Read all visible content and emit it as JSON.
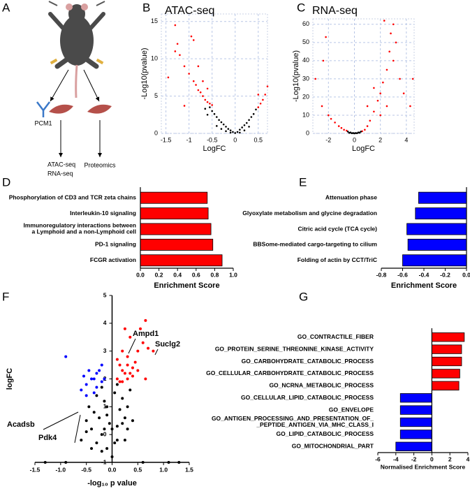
{
  "panel_labels": [
    "A",
    "B",
    "C",
    "D",
    "E",
    "F",
    "G"
  ],
  "diagram": {
    "antibody_label": "PCM1",
    "left_branch": [
      "ATAC-seq",
      "RNA-seq"
    ],
    "right_branch": "Proteomics"
  },
  "chart_data": [
    {
      "type": "scatter",
      "title": "ATAC-seq",
      "x_label": "LogFC",
      "y_label": "-Log10(pvalue)",
      "xlim": [
        -1.6,
        0.7
      ],
      "xticks": [
        -1.5,
        -1,
        -0.5,
        0,
        0.5
      ],
      "ylim": [
        0,
        16
      ],
      "yticks": [
        0,
        5,
        10,
        15
      ],
      "grid": true,
      "series": [
        {
          "color": "#000000",
          "x": [
            -0.65,
            -0.6,
            -0.55,
            -0.5,
            -0.45,
            -0.4,
            -0.35,
            -0.3,
            -0.25,
            -0.2,
            -0.15,
            -0.1,
            -0.05,
            0,
            0.05,
            0.1,
            0.15,
            0.2,
            0.25,
            0.3,
            0.35,
            0.4,
            0.45,
            -0.4,
            -0.3,
            -0.2,
            0.2,
            0.3,
            0.1,
            -0.1
          ],
          "y": [
            3.3,
            2.5,
            3.5,
            3.0,
            2.6,
            2.2,
            1.8,
            1.5,
            1.2,
            0.9,
            0.6,
            0.4,
            0.2,
            0.05,
            0.2,
            0.5,
            0.8,
            1.1,
            1.4,
            1.8,
            2.2,
            2.6,
            3.2,
            1.0,
            0.6,
            0.3,
            0.4,
            0.9,
            0.1,
            0.1
          ]
        },
        {
          "color": "#ff0000",
          "x": [
            -1.3,
            -1.25,
            -1.2,
            -1.1,
            -1.0,
            -0.9,
            -0.85,
            -0.8,
            -0.75,
            -0.7,
            -0.65,
            -0.6,
            -0.55,
            -1.45,
            -1.3,
            -0.95,
            -0.9,
            -0.8,
            -0.5,
            0.5,
            0.55,
            0.6,
            0.65,
            0.7,
            0.5,
            -1.1,
            -0.7,
            -0.6
          ],
          "y": [
            11,
            12,
            10.5,
            9,
            8,
            7,
            6.5,
            5.8,
            5.5,
            5,
            4.5,
            4.2,
            4,
            7.5,
            14.5,
            13,
            12.5,
            9,
            3.8,
            3.5,
            4,
            4.5,
            5.2,
            6.3,
            5.2,
            3.7,
            7,
            6
          ]
        }
      ]
    },
    {
      "type": "scatter",
      "title": "RNA-seq",
      "x_label": "LogFC",
      "y_label": "-Log10(pvalue)",
      "xlim": [
        -3.2,
        4.6
      ],
      "xticks": [
        -2,
        0,
        2,
        4
      ],
      "ylim": [
        0,
        63
      ],
      "yticks": [
        0,
        10,
        20,
        30,
        40,
        50,
        60
      ],
      "grid": true,
      "series": [
        {
          "color": "#ff0000",
          "x": [
            -3,
            -2.2,
            -2.4,
            -2,
            -1.8,
            -1.5,
            -1.2,
            -1,
            -0.8,
            0.8,
            1,
            1.2,
            1.5,
            1.8,
            2,
            2.2,
            2.5,
            2.7,
            2.8,
            3,
            3,
            3.2,
            3.5,
            2.5,
            2,
            1.5,
            3.8,
            4.3,
            4.5,
            -2.5,
            -0.6,
            0.6,
            2.3,
            1
          ],
          "y": [
            30,
            53,
            40,
            10,
            8,
            6,
            4,
            3,
            2,
            2,
            4,
            7,
            12,
            18,
            22,
            28,
            35,
            45,
            55,
            60,
            40,
            50,
            30,
            15,
            10,
            25,
            22,
            15,
            30,
            15,
            1.5,
            1.2,
            62,
            15
          ]
        },
        {
          "color": "#000000",
          "x": [
            -0.5,
            -0.3,
            -0.1,
            0,
            0.1,
            0.3,
            0.5,
            -0.4,
            0.4,
            0.2,
            -0.2
          ],
          "y": [
            1,
            0.5,
            0.2,
            0,
            0.2,
            0.5,
            1,
            0.3,
            0.4,
            0.1,
            0.1
          ]
        }
      ]
    },
    {
      "type": "hbar",
      "x_label": "Enrichment Score",
      "color": "#ff0000",
      "categories": [
        "Phosphorylation of CD3 and TCR zeta chains",
        "Interleukin-10 signaling",
        "Immunoregulatory interactions between\na Lymphoid and a non-Lymphoid cell",
        "PD-1 signaling",
        "FCGR activation"
      ],
      "values": [
        0.72,
        0.73,
        0.76,
        0.78,
        0.88
      ],
      "xlim": [
        0,
        1
      ],
      "xticks": [
        {
          "value": 0,
          "label": "0.0"
        },
        0.2,
        0.4,
        0.6,
        0.8,
        {
          "value": 1,
          "label": "1.0"
        }
      ]
    },
    {
      "type": "hbar",
      "x_label": "Enrichment Score",
      "color": "#0000ff",
      "categories": [
        "Attenuation phase",
        "Glyoxylate metabolism and glycine degradation",
        "Citric acid cycle (TCA cycle)",
        "BBSome-mediated cargo-targeting to cilium",
        "Folding of actin by CCT/TriC"
      ],
      "values": [
        -0.45,
        -0.48,
        -0.56,
        -0.55,
        -0.6
      ],
      "xlim": [
        -0.8,
        0
      ],
      "xticks": [
        -0.8,
        -0.6,
        -0.4,
        -0.2,
        {
          "value": 0,
          "label": "0.0"
        }
      ]
    },
    {
      "type": "scatter",
      "x_label": "-log₁₀ p value",
      "y_label": "logFC",
      "xlim": [
        -1.5,
        1.5
      ],
      "xticks": [
        -1.5,
        {
          "value": -1,
          "label": "-1.0"
        },
        -0.5,
        {
          "value": 0,
          "label": "0.0"
        },
        0.5,
        {
          "value": 1,
          "label": "1.0"
        },
        1.5
      ],
      "ylim": [
        -1,
        5
      ],
      "yticks": [
        -1,
        0,
        1,
        2,
        3,
        4,
        5
      ],
      "grid": false,
      "annotations": [
        "Ampd1",
        "Suclg2",
        "Acadsb",
        "Pdk4"
      ],
      "series": [
        {
          "color": "#000000",
          "x": [
            -0.5,
            -0.45,
            -0.4,
            -0.35,
            -0.3,
            -0.25,
            -0.2,
            -0.15,
            -0.1,
            -0.05,
            0,
            0.05,
            0.1,
            0.15,
            0.2,
            0.25,
            0.3,
            0.35,
            -0.3,
            -0.2,
            -0.1,
            0,
            0.1,
            0.2,
            -0.6,
            -0.4,
            -0.15,
            0.05,
            0.25,
            0.4,
            -0.2,
            0.1,
            -0.5,
            -0.1,
            0.3,
            -1.3,
            -0.9,
            0.6,
            1.1,
            1.3
          ],
          "y": [
            0.5,
            1.0,
            0.2,
            0.8,
            -0.3,
            0.6,
            0.0,
            1.2,
            -0.5,
            0.4,
            -0.8,
            1.5,
            0.3,
            0.9,
            1.3,
            0.6,
            1.0,
            1.6,
            1.4,
            -0.6,
            1.0,
            0.2,
            -0.2,
            0.4,
            -0.2,
            -0.5,
            0.2,
            -0.3,
            -0.2,
            0.5,
            1.7,
            1.8,
            0.1,
            0.7,
            0.2,
            -1,
            -1,
            -1,
            -1,
            -1
          ]
        },
        {
          "color": "#ff0000",
          "x": [
            0.1,
            0.15,
            0.2,
            0.25,
            0.3,
            0.35,
            0.4,
            0.45,
            0.5,
            0.55,
            0.6,
            0.65,
            0.7,
            0.8,
            0.15,
            0.2,
            0.25,
            0.3,
            0.35,
            0.1,
            0.2,
            0.3,
            0.4,
            0.5,
            0.65
          ],
          "y": [
            2.0,
            2.5,
            3.0,
            2.2,
            2.8,
            3.5,
            2.4,
            2.6,
            3.0,
            3.8,
            3.3,
            4.1,
            3.1,
            3.0,
            1.9,
            2.3,
            3.8,
            2.0,
            2.2,
            2.7,
            1.9,
            2.5,
            2.1,
            2.3,
            2.0
          ]
        },
        {
          "color": "#0000ff",
          "x": [
            -0.9,
            -0.6,
            -0.55,
            -0.5,
            -0.45,
            -0.4,
            -0.35,
            -0.3,
            -0.25,
            -0.2,
            -0.15,
            -0.5,
            -0.3,
            -0.2,
            -0.35
          ],
          "y": [
            2.8,
            1.6,
            2.1,
            1.8,
            2.3,
            2.0,
            1.5,
            2.2,
            2.3,
            1.9,
            2.0,
            1.4,
            1.7,
            2.5,
            2.0
          ]
        }
      ]
    },
    {
      "type": "hbar",
      "x_label": "Normalised Enrichment Score",
      "categories": [
        "GO_CONTRACTILE_FIBER",
        "GO_PROTEIN_SERINE_THREONINE_KINASE_ACTIVITY",
        "GO_CARBOHYDRATE_CATABOLIC_PROCESS",
        "GO_CELLULAR_CARBOHYDRATE_CATABOLIC_PROCESS",
        "GO_NCRNA_METABOLIC_PROCESS",
        "GO_CELLULAR_LIPID_CATABOLIC_PROCESS",
        "GO_ENVELOPE",
        "GO_ANTIGEN_PROCESSING_AND_PRESENTATION_OF_\n_PEPTIDE_ANTIGEN_VIA_MHC_CLASS_I",
        "GO_LIPID_CATABOLIC_PROCESS",
        "GO_MITOCHONDRIAL_PART"
      ],
      "values": [
        3.6,
        3.3,
        3.3,
        3.1,
        3.0,
        -3.5,
        -3.5,
        -3.5,
        -3.5,
        -4.0
      ],
      "colors": [
        "#ff0000",
        "#ff0000",
        "#ff0000",
        "#ff0000",
        "#ff0000",
        "#0000ff",
        "#0000ff",
        "#0000ff",
        "#0000ff",
        "#0000ff"
      ],
      "xlim": [
        -6,
        4
      ],
      "xticks": [
        -6,
        -4,
        -2,
        0,
        2,
        4
      ]
    }
  ]
}
